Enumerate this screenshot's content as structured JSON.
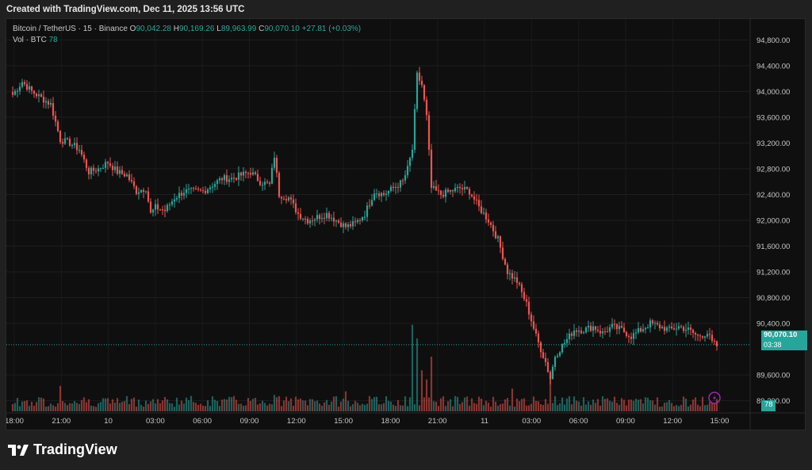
{
  "caption": "Created with TradingView.com, Dec 11, 2025 13:56 UTC",
  "legend": {
    "symbol": "Bitcoin / TetherUS · 15 · Binance",
    "o_label": "O",
    "o": "90,042.28",
    "h_label": "H",
    "h": "90,169.26",
    "l_label": "L",
    "l": "89,963.99",
    "c_label": "C",
    "c": "90,070.10",
    "change": "+27.81 (+0.03%)",
    "vol_label": "Vol · BTC",
    "vol": "78"
  },
  "price_tag": {
    "price": "90,070.10",
    "countdown": "03:38"
  },
  "vol_tag": "78",
  "brand": "TradingView",
  "icons": {
    "lightning": "lightning-icon",
    "logo": "tradingview-logo-icon"
  },
  "colors": {
    "up": "#26a69a",
    "down": "#ef5350",
    "background": "#0f0f0f",
    "frame": "#202020"
  },
  "chart_data": {
    "type": "candlestick",
    "symbol": "Bitcoin / TetherUS",
    "interval": "15",
    "exchange": "Binance",
    "y_ticks": [
      "94,800.00",
      "94,400.00",
      "94,000.00",
      "93,600.00",
      "93,200.00",
      "92,800.00",
      "92,400.00",
      "92,000.00",
      "91,600.00",
      "91,200.00",
      "90,800.00",
      "90,400.00",
      "89,600.00",
      "89,200.00"
    ],
    "x_ticks": [
      "18:00",
      "21:00",
      "10",
      "03:00",
      "06:00",
      "09:00",
      "12:00",
      "15:00",
      "18:00",
      "21:00",
      "11",
      "03:00",
      "06:00",
      "09:00",
      "12:00",
      "15:00"
    ],
    "last_price": 90070.1,
    "ylim": [
      88900,
      95050
    ],
    "grid": true,
    "anchors": [
      [
        0,
        93950
      ],
      [
        4,
        94150
      ],
      [
        8,
        94000
      ],
      [
        12,
        93900
      ],
      [
        16,
        93800
      ],
      [
        20,
        93250
      ],
      [
        24,
        93200
      ],
      [
        28,
        93100
      ],
      [
        32,
        92750
      ],
      [
        36,
        92800
      ],
      [
        40,
        92900
      ],
      [
        44,
        92750
      ],
      [
        48,
        92700
      ],
      [
        52,
        92450
      ],
      [
        56,
        92500
      ],
      [
        58,
        92100
      ],
      [
        60,
        92200
      ],
      [
        64,
        92150
      ],
      [
        68,
        92350
      ],
      [
        72,
        92450
      ],
      [
        76,
        92450
      ],
      [
        80,
        92450
      ],
      [
        84,
        92550
      ],
      [
        88,
        92650
      ],
      [
        92,
        92650
      ],
      [
        96,
        92700
      ],
      [
        100,
        92750
      ],
      [
        104,
        92600
      ],
      [
        108,
        92550
      ],
      [
        110,
        93000
      ],
      [
        112,
        92400
      ],
      [
        116,
        92350
      ],
      [
        120,
        92100
      ],
      [
        124,
        92000
      ],
      [
        128,
        92050
      ],
      [
        132,
        92100
      ],
      [
        136,
        92000
      ],
      [
        140,
        91900
      ],
      [
        144,
        91950
      ],
      [
        148,
        92100
      ],
      [
        152,
        92450
      ],
      [
        156,
        92400
      ],
      [
        160,
        92500
      ],
      [
        164,
        92600
      ],
      [
        166,
        92800
      ],
      [
        168,
        93100
      ],
      [
        170,
        94250
      ],
      [
        172,
        94100
      ],
      [
        174,
        93600
      ],
      [
        176,
        92500
      ],
      [
        180,
        92400
      ],
      [
        184,
        92450
      ],
      [
        188,
        92500
      ],
      [
        192,
        92450
      ],
      [
        196,
        92200
      ],
      [
        200,
        92000
      ],
      [
        204,
        91700
      ],
      [
        208,
        91200
      ],
      [
        212,
        91050
      ],
      [
        216,
        90700
      ],
      [
        220,
        90200
      ],
      [
        224,
        89800
      ],
      [
        226,
        89550
      ],
      [
        228,
        89900
      ],
      [
        232,
        90100
      ],
      [
        236,
        90300
      ],
      [
        240,
        90300
      ],
      [
        244,
        90350
      ],
      [
        248,
        90250
      ],
      [
        252,
        90350
      ],
      [
        256,
        90300
      ],
      [
        260,
        90200
      ],
      [
        264,
        90300
      ],
      [
        268,
        90400
      ],
      [
        272,
        90350
      ],
      [
        276,
        90300
      ],
      [
        280,
        90350
      ],
      [
        284,
        90300
      ],
      [
        288,
        90200
      ],
      [
        292,
        90250
      ],
      [
        294,
        90100
      ],
      [
        296,
        90050
      ],
      [
        298,
        90070
      ]
    ],
    "volume_spikes": [
      [
        168,
        0.95
      ],
      [
        170,
        0.8
      ],
      [
        172,
        0.45
      ],
      [
        174,
        0.35
      ],
      [
        176,
        0.6
      ],
      [
        226,
        0.4
      ],
      [
        210,
        0.25
      ],
      [
        140,
        0.22
      ],
      [
        20,
        0.28
      ],
      [
        110,
        0.18
      ]
    ]
  }
}
